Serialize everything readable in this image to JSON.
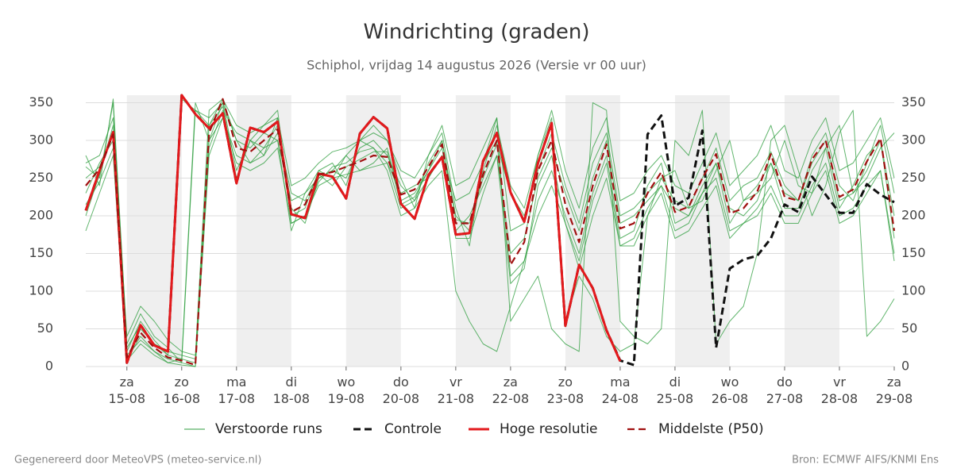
{
  "chart_data": {
    "type": "line",
    "title": "Windrichting (graden)",
    "subtitle": "Schiphol, vrijdag 14 augustus 2026 (Versie vr 00 uur)",
    "footer_left": "Gegenereerd door MeteoVPS (meteo-service.nl)",
    "footer_right": "Bron: ECMWF AIFS/KNMI Ens",
    "x": [
      0.25,
      0.5,
      0.75,
      1,
      1.25,
      1.5,
      1.75,
      2,
      2.25,
      2.5,
      2.75,
      3,
      3.25,
      3.5,
      3.75,
      4,
      4.25,
      4.5,
      4.75,
      5,
      5.25,
      5.5,
      5.75,
      6,
      6.25,
      6.5,
      6.75,
      7,
      7.25,
      7.5,
      7.75,
      8,
      8.25,
      8.5,
      8.75,
      9,
      9.25,
      9.5,
      9.75,
      10,
      10.25,
      10.5,
      10.75,
      11,
      11.25,
      11.5,
      11.75,
      12,
      12.25,
      12.5,
      12.75,
      13,
      13.25,
      13.5,
      13.75,
      14,
      14.25,
      14.5,
      14.75,
      15
    ],
    "xlim": [
      0.25,
      15
    ],
    "xticks": [
      {
        "value": 1,
        "label": "za\n15-08"
      },
      {
        "value": 2,
        "label": "zo\n16-08"
      },
      {
        "value": 3,
        "label": "ma\n17-08"
      },
      {
        "value": 4,
        "label": "di\n18-08"
      },
      {
        "value": 5,
        "label": "wo\n19-08"
      },
      {
        "value": 6,
        "label": "do\n20-08"
      },
      {
        "value": 7,
        "label": "vr\n21-08"
      },
      {
        "value": 8,
        "label": "za\n22-08"
      },
      {
        "value": 9,
        "label": "zo\n23-08"
      },
      {
        "value": 10,
        "label": "ma\n24-08"
      },
      {
        "value": 11,
        "label": "di\n25-08"
      },
      {
        "value": 12,
        "label": "wo\n26-08"
      },
      {
        "value": 13,
        "label": "do\n27-08"
      },
      {
        "value": 14,
        "label": "vr\n28-08"
      },
      {
        "value": 15,
        "label": "za\n29-08"
      }
    ],
    "ylim": [
      0,
      360
    ],
    "yticks": [
      0,
      50,
      100,
      150,
      200,
      250,
      300,
      350
    ],
    "grid": true,
    "legend": "bottom",
    "ensemble": {
      "name": "Verstoorde runs",
      "color": "#2e9e3e",
      "members": [
        [
          265,
          250,
          350,
          20,
          60,
          35,
          15,
          355,
          340,
          320,
          345,
          250,
          300,
          280,
          330,
          210,
          190,
          250,
          260,
          250,
          290,
          300,
          280,
          240,
          220,
          270,
          300,
          200,
          180,
          260,
          320,
          240,
          210,
          280,
          330,
          60,
          120,
          90,
          40,
          20,
          30,
          200,
          250,
          260,
          210,
          220,
          260,
          300,
          220,
          230,
          250,
          300,
          240,
          230,
          290,
          320,
          230,
          250,
          290,
          310
        ],
        [
          230,
          270,
          300,
          10,
          40,
          20,
          5,
          10,
          350,
          300,
          330,
          280,
          270,
          290,
          320,
          200,
          210,
          260,
          250,
          280,
          260,
          270,
          290,
          220,
          230,
          260,
          290,
          180,
          200,
          240,
          280,
          150,
          170,
          250,
          290,
          230,
          180,
          250,
          300,
          190,
          200,
          220,
          240,
          210,
          200,
          240,
          270,
          210,
          200,
          220,
          270,
          210,
          210,
          260,
          290,
          210,
          240,
          280,
          300,
          200
        ],
        [
          280,
          240,
          355,
          30,
          70,
          40,
          25,
          5,
          340,
          330,
          350,
          300,
          290,
          310,
          300,
          220,
          230,
          260,
          270,
          240,
          300,
          320,
          300,
          250,
          210,
          280,
          310,
          210,
          160,
          270,
          330,
          60,
          90,
          120,
          50,
          30,
          20,
          350,
          340,
          60,
          40,
          30,
          50,
          300,
          280,
          340,
          30,
          60,
          80,
          150,
          300,
          320,
          260,
          200,
          240,
          310,
          340,
          40,
          60,
          90
        ],
        [
          200,
          255,
          320,
          5,
          50,
          30,
          20,
          15,
          10,
          300,
          350,
          260,
          300,
          320,
          340,
          190,
          200,
          245,
          265,
          270,
          285,
          290,
          270,
          230,
          240,
          250,
          280,
          220,
          230,
          270,
          300,
          120,
          140,
          220,
          260,
          200,
          150,
          230,
          280,
          170,
          180,
          240,
          270,
          190,
          200,
          230,
          270,
          190,
          220,
          240,
          270,
          230,
          220,
          270,
          300,
          220,
          230,
          260,
          300,
          170
        ],
        [
          250,
          265,
          310,
          15,
          35,
          20,
          10,
          5,
          0,
          320,
          355,
          300,
          270,
          280,
          310,
          230,
          220,
          255,
          240,
          265,
          275,
          285,
          285,
          215,
          225,
          260,
          300,
          195,
          190,
          250,
          295,
          230,
          200,
          260,
          310,
          240,
          190,
          270,
          310,
          200,
          210,
          230,
          250,
          220,
          210,
          250,
          290,
          220,
          240,
          250,
          285,
          240,
          220,
          280,
          310,
          240,
          220,
          270,
          320,
          230
        ],
        [
          215,
          245,
          290,
          25,
          55,
          30,
          15,
          10,
          5,
          290,
          340,
          310,
          300,
          290,
          300,
          180,
          230,
          250,
          260,
          280,
          300,
          290,
          260,
          200,
          210,
          240,
          260,
          100,
          60,
          30,
          20,
          80,
          140,
          200,
          240,
          190,
          130,
          200,
          250,
          160,
          170,
          210,
          240,
          180,
          190,
          230,
          250,
          180,
          190,
          210,
          240,
          200,
          200,
          240,
          270,
          200,
          210,
          240,
          260,
          150
        ],
        [
          270,
          280,
          330,
          40,
          80,
          60,
          35,
          20,
          15,
          340,
          355,
          320,
          310,
          320,
          330,
          240,
          250,
          270,
          285,
          290,
          300,
          310,
          300,
          260,
          250,
          280,
          320,
          240,
          250,
          290,
          330,
          180,
          190,
          280,
          340,
          260,
          210,
          290,
          330,
          220,
          230,
          260,
          280,
          240,
          230,
          270,
          310,
          240,
          260,
          280,
          320,
          260,
          250,
          300,
          330,
          260,
          270,
          300,
          330,
          250
        ],
        [
          180,
          230,
          280,
          8,
          30,
          15,
          5,
          2,
          0,
          280,
          330,
          270,
          260,
          270,
          290,
          190,
          200,
          240,
          250,
          255,
          260,
          265,
          270,
          210,
          220,
          250,
          280,
          170,
          170,
          230,
          280,
          110,
          130,
          240,
          280,
          190,
          140,
          220,
          270,
          160,
          160,
          200,
          230,
          170,
          180,
          210,
          240,
          170,
          190,
          200,
          230,
          190,
          190,
          230,
          260,
          190,
          200,
          230,
          260,
          140
        ]
      ]
    },
    "series": [
      {
        "name": "Controle",
        "color": "#111111",
        "dash": true,
        "width": 3,
        "values": [
          207,
          260,
          311,
          5,
          55,
          28,
          20,
          360,
          335,
          316,
          336,
          243,
          317,
          311,
          325,
          202,
          197,
          256,
          252,
          223,
          309,
          331,
          316,
          216,
          196,
          254,
          278,
          175,
          177,
          273,
          310,
          231,
          192,
          270,
          323,
          54,
          135,
          104,
          48,
          8,
          2,
          308,
          333,
          213,
          224,
          313,
          25,
          130,
          142,
          147,
          170,
          215,
          205,
          252,
          228,
          204,
          204,
          242,
          228,
          218
        ]
      },
      {
        "name": "Hoge resolutie",
        "color": "#e3191c",
        "dash": false,
        "width": 3,
        "values": [
          207,
          260,
          311,
          5,
          55,
          28,
          20,
          360,
          335,
          316,
          336,
          243,
          317,
          311,
          325,
          202,
          197,
          256,
          252,
          223,
          309,
          331,
          316,
          216,
          196,
          254,
          278,
          175,
          177,
          273,
          310,
          231,
          192,
          270,
          323,
          54,
          135,
          104,
          48,
          7,
          null,
          null,
          null,
          null,
          null,
          null,
          null,
          null,
          null,
          null,
          null,
          null,
          null,
          null,
          null,
          null,
          null,
          null,
          null,
          null
        ]
      },
      {
        "name": "Middelste (P50)",
        "color": "#a01010",
        "dash": true,
        "width": 2.2,
        "values": [
          240,
          262,
          308,
          12,
          45,
          25,
          12,
          8,
          2,
          310,
          355,
          290,
          285,
          300,
          315,
          205,
          215,
          255,
          258,
          265,
          272,
          280,
          278,
          228,
          235,
          265,
          295,
          190,
          190,
          255,
          300,
          135,
          165,
          260,
          300,
          215,
          165,
          240,
          295,
          183,
          190,
          230,
          258,
          205,
          212,
          250,
          282,
          203,
          210,
          232,
          282,
          225,
          220,
          275,
          300,
          225,
          235,
          272,
          303,
          180
        ]
      }
    ]
  }
}
